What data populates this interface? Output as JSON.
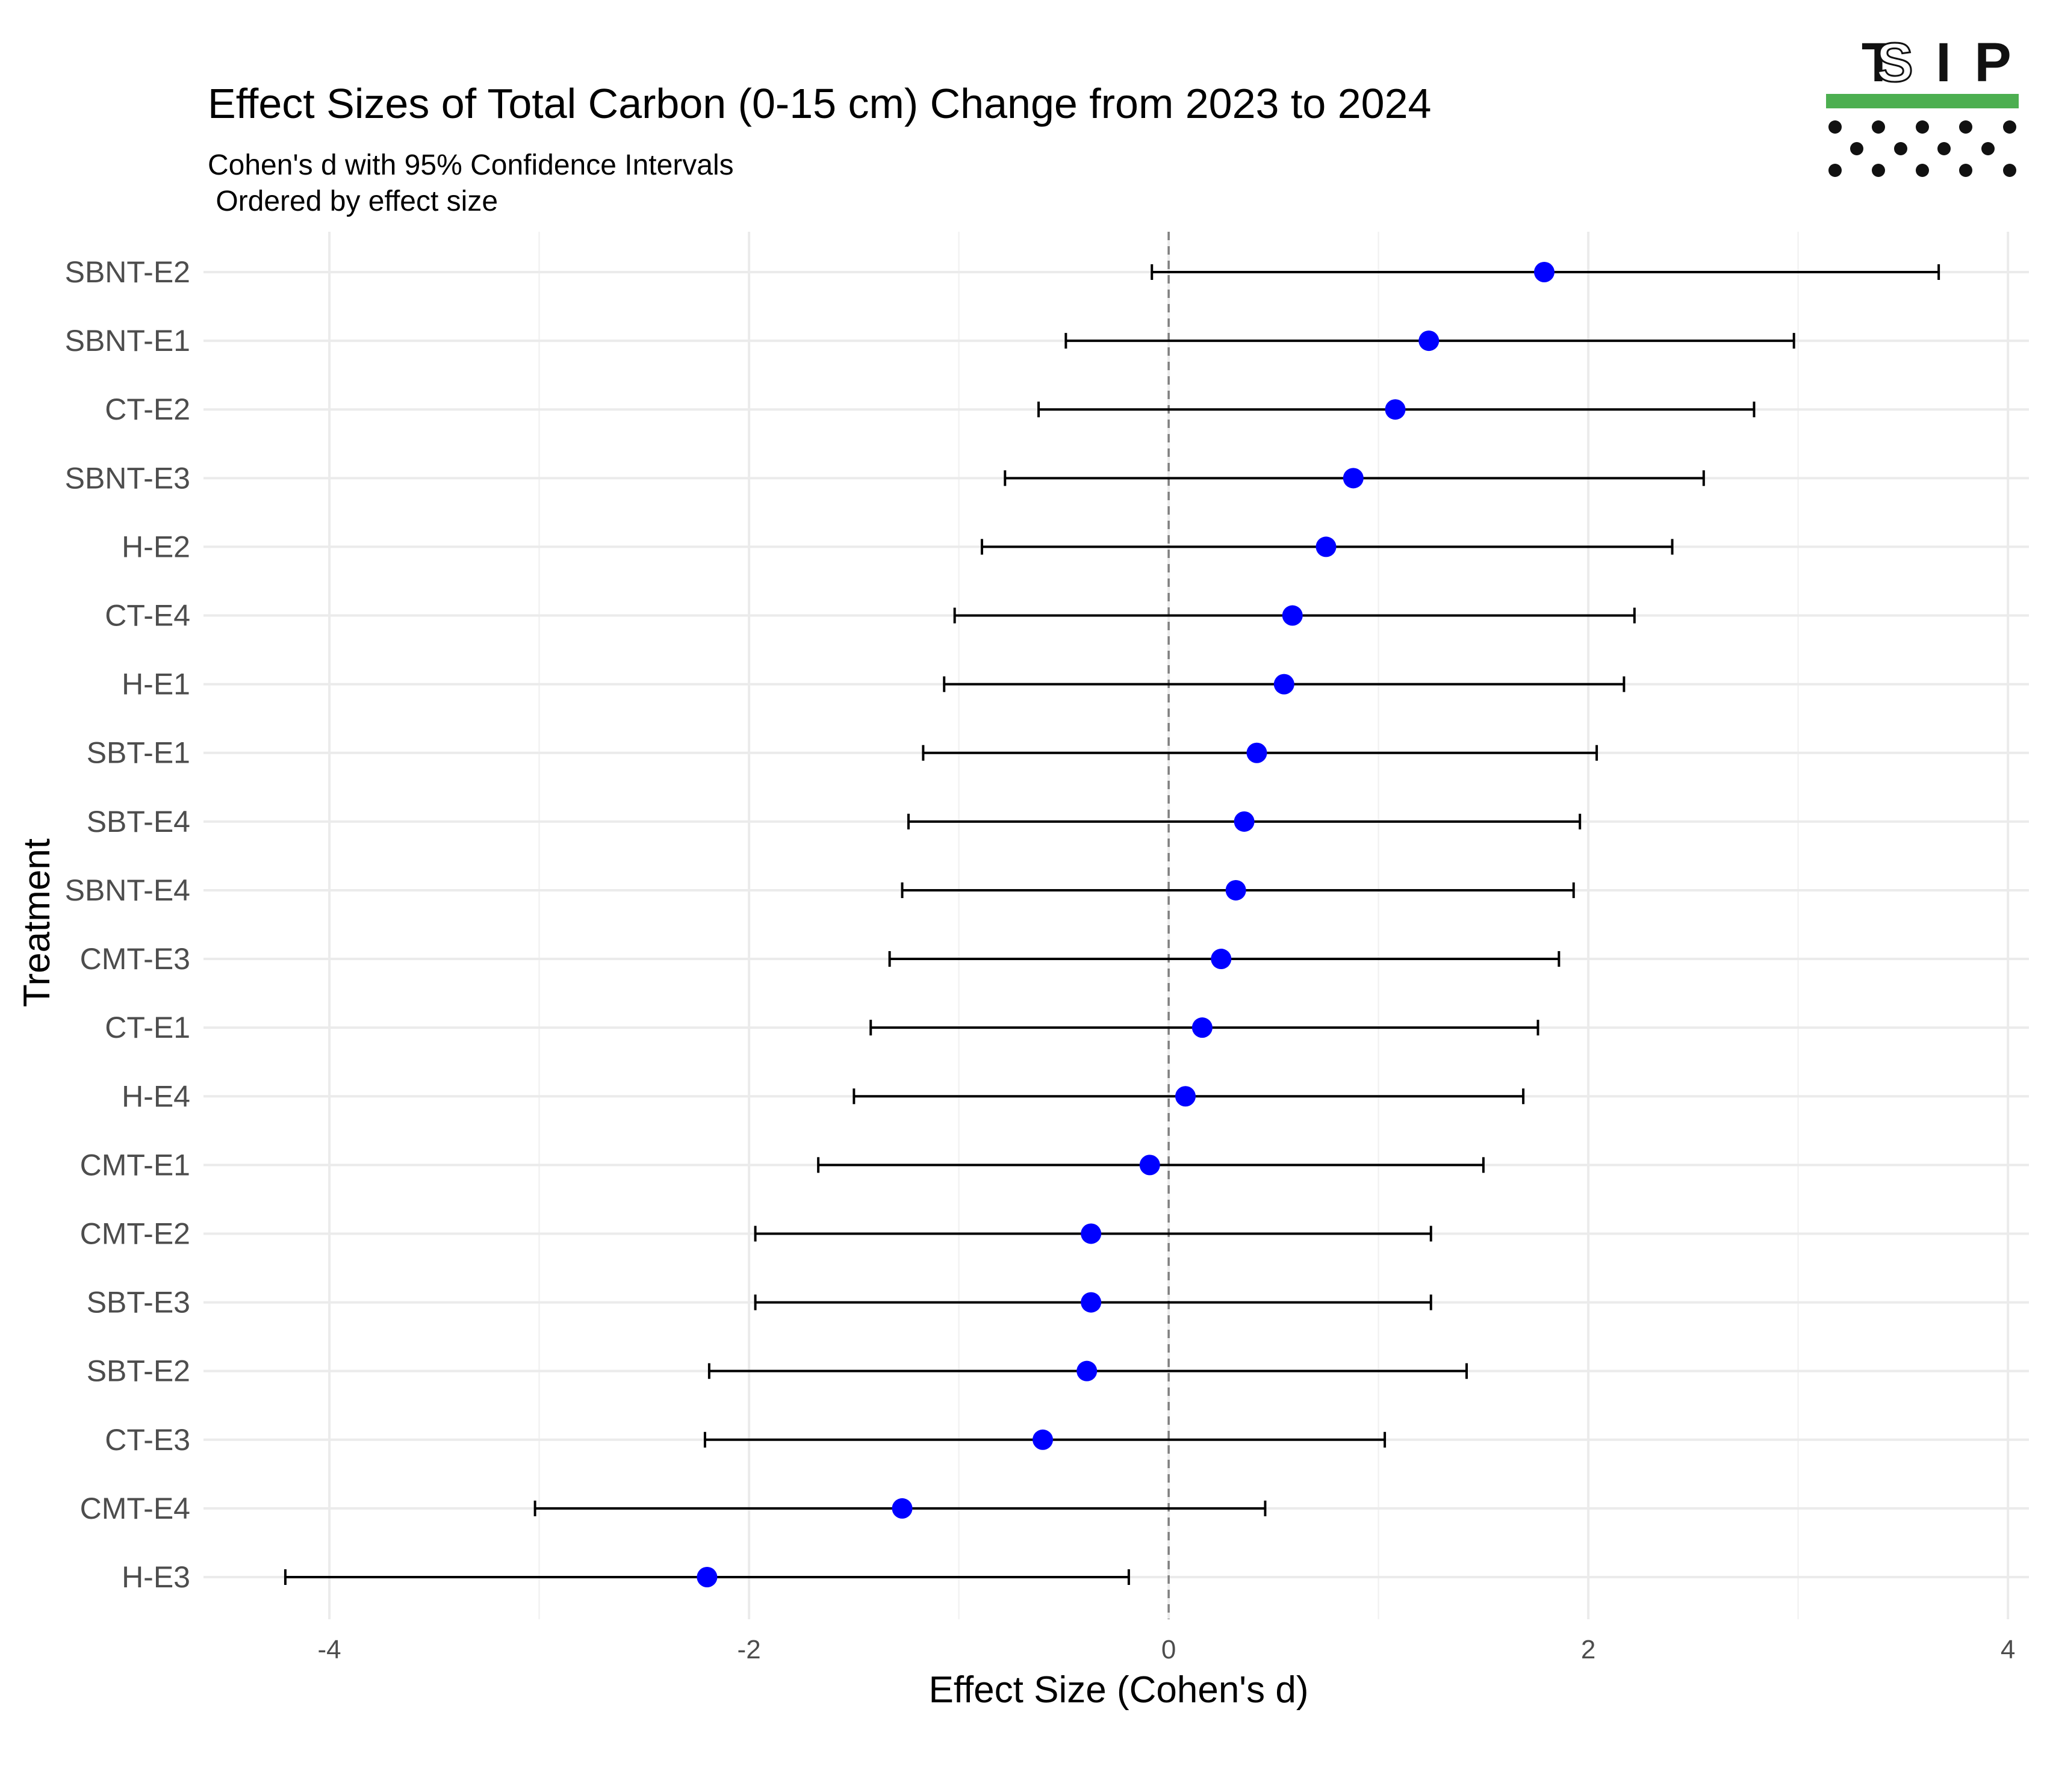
{
  "chart_data": {
    "type": "scatter",
    "title": "Effect Sizes of Total Carbon (0-15 cm) Change from 2023 to 2024",
    "subtitle_lines": [
      "Cohen's d with 95% Confidence Intervals",
      " Ordered by effect size"
    ],
    "xlabel": "Effect Size (Cohen's d)",
    "ylabel": "Treatment",
    "xlim": [
      -4.6,
      4.1
    ],
    "x_ticks": [
      -4,
      -2,
      0,
      2,
      4
    ],
    "x_tick_labels": [
      "-4",
      "-2",
      "0",
      "2",
      "4"
    ],
    "reference_line": 0,
    "grid": true,
    "point_color": "#0000ff",
    "error_bar_color": "#000000",
    "reference_line_color": "#808080",
    "categories": [
      "SBNT-E2",
      "SBNT-E1",
      "CT-E2",
      "SBNT-E3",
      "H-E2",
      "CT-E4",
      "H-E1",
      "SBT-E1",
      "SBT-E4",
      "SBNT-E4",
      "CMT-E3",
      "CT-E1",
      "H-E4",
      "CMT-E1",
      "CMT-E2",
      "SBT-E3",
      "SBT-E2",
      "CT-E3",
      "CMT-E4",
      "H-E3"
    ],
    "values": [
      1.79,
      1.24,
      1.08,
      0.88,
      0.75,
      0.59,
      0.55,
      0.42,
      0.36,
      0.32,
      0.25,
      0.16,
      0.08,
      -0.09,
      -0.37,
      -0.37,
      -0.39,
      -0.6,
      -1.27,
      -2.2
    ],
    "ci_lower": [
      -0.08,
      -0.49,
      -0.62,
      -0.78,
      -0.89,
      -1.02,
      -1.07,
      -1.17,
      -1.24,
      -1.27,
      -1.33,
      -1.42,
      -1.5,
      -1.67,
      -1.97,
      -1.97,
      -2.19,
      -2.21,
      -3.02,
      -4.21
    ],
    "ci_upper": [
      3.67,
      2.98,
      2.79,
      2.55,
      2.4,
      2.22,
      2.17,
      2.04,
      1.96,
      1.93,
      1.86,
      1.76,
      1.69,
      1.5,
      1.25,
      1.25,
      1.42,
      1.03,
      0.46,
      -0.19
    ]
  },
  "logo": {
    "letters": [
      "T",
      "S",
      "I",
      "P"
    ],
    "bar_color": "#4caf50",
    "dot_color": "#111111"
  }
}
